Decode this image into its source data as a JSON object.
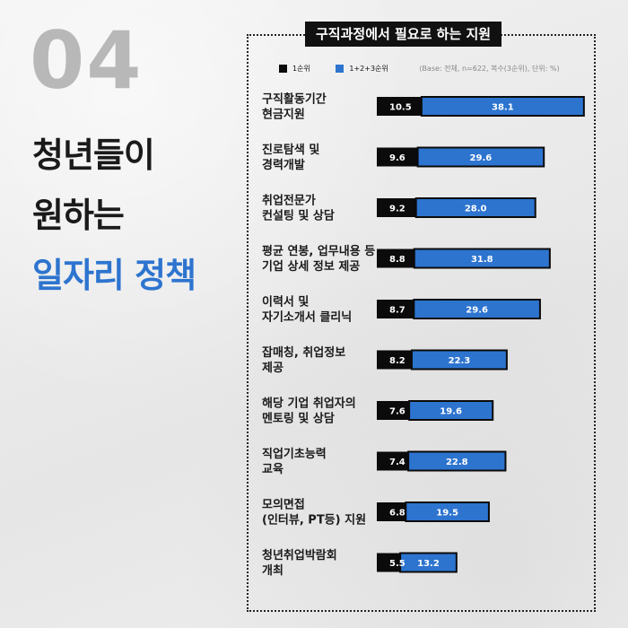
{
  "section_number": "04",
  "headline": {
    "line1": "청년들이",
    "line2": "원하는",
    "line3": "일자리 정책"
  },
  "colors": {
    "first_choice": "#0b0b0b",
    "combined": "#2d74cf",
    "headline_accent": "#2d74cf",
    "number": "#b8b8b8"
  },
  "chart_data": {
    "type": "bar",
    "orientation": "horizontal",
    "stacked": true,
    "title": "구직과정에서 필요로 하는 지원",
    "note": "(Base: 전체, n=622, 복수(3순위), 단위: %)",
    "legend_position": "top",
    "categories": [
      [
        "구직활동기간",
        "현금지원"
      ],
      [
        "진로탐색 및",
        "경력개발"
      ],
      [
        "취업전문가",
        "컨설팅 및 상담"
      ],
      [
        "평균 연봉, 업무내용 등",
        "기업 상세 정보 제공"
      ],
      [
        "이력서 및",
        "자기소개서 클리닉"
      ],
      [
        "잡매칭, 취업정보",
        "제공"
      ],
      [
        "해당 기업 취업자의",
        "멘토링 및 상담"
      ],
      [
        "직업기초능력",
        "교육"
      ],
      [
        "모의면접",
        "(인터뷰, PT등) 지원"
      ],
      [
        "청년취업박람회",
        "개최"
      ]
    ],
    "series": [
      {
        "name": "1순위",
        "values": [
          10.5,
          9.6,
          9.2,
          8.8,
          8.7,
          8.2,
          7.6,
          7.4,
          6.8,
          5.5
        ]
      },
      {
        "name": "1+2+3순위",
        "values": [
          38.1,
          29.6,
          28.0,
          31.8,
          29.6,
          22.3,
          19.6,
          22.8,
          19.5,
          13.2
        ]
      }
    ],
    "value_labels": [
      [
        "10.5",
        "38.1"
      ],
      [
        "9.6",
        "29.6"
      ],
      [
        "9.2",
        "28.0"
      ],
      [
        "8.8",
        "31.8"
      ],
      [
        "8.7",
        "29.6"
      ],
      [
        "8.2",
        "22.3"
      ],
      [
        "7.6",
        "19.6"
      ],
      [
        "7.4",
        "22.8"
      ],
      [
        "6.8",
        "19.5"
      ],
      [
        "5.5",
        "13.2"
      ]
    ],
    "grid": false
  }
}
